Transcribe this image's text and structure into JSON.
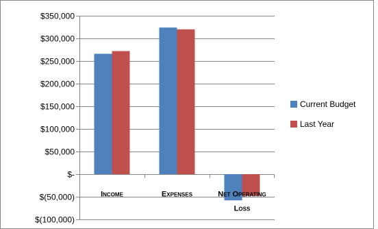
{
  "chart_data": {
    "type": "bar",
    "categories": [
      "INCOME",
      "EXPENSES",
      "NET OPERATING LOSS"
    ],
    "category_lines": [
      [
        "Income"
      ],
      [
        "Expenses"
      ],
      [
        "Net Operating",
        "Loss"
      ]
    ],
    "series": [
      {
        "name": "Current Budget",
        "color": "#4F81BD",
        "values": [
          266000,
          324000,
          -58000
        ]
      },
      {
        "name": "Last Year",
        "color": "#C0504D",
        "values": [
          272000,
          320000,
          -48000
        ]
      }
    ],
    "y_ticks": [
      350000,
      300000,
      250000,
      200000,
      150000,
      100000,
      50000,
      0,
      -50000,
      -100000
    ],
    "y_tick_labels": [
      "$350,000",
      "$300,000",
      "$250,000",
      "$200,000",
      "$150,000",
      "$100,000",
      "$50,000",
      "$-",
      "$(50,000)",
      "$(100,000)"
    ],
    "ylim": [
      -100000,
      350000
    ],
    "grid": true,
    "legend_position": "right",
    "title": "",
    "xlabel": "",
    "ylabel": ""
  }
}
